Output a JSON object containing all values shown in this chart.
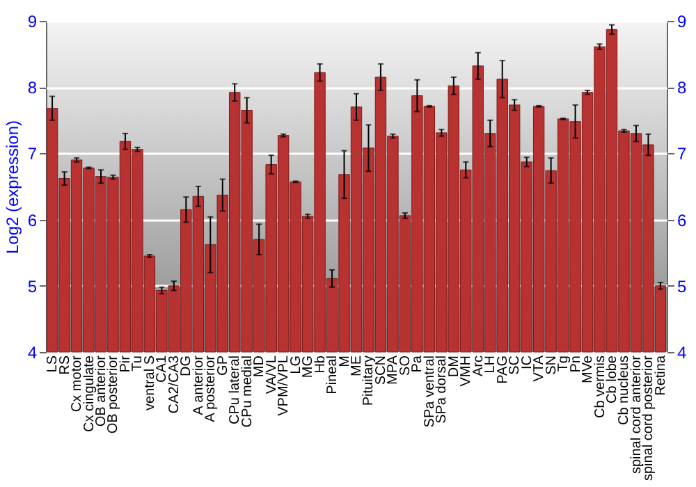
{
  "chart_data": {
    "type": "bar",
    "ylabel": "Log2 (expression)",
    "categories": [
      "LS",
      "RS",
      "Cx motor",
      "Cx cingulate",
      "OB anterior",
      "OB posterior",
      "Pir",
      "Tu",
      "ventral S",
      "CA1",
      "CA2/CA3",
      "DG",
      "A anterior",
      "A posterior",
      "GP",
      "CPu lateral",
      "CPu medial",
      "MD",
      "VA/VL",
      "VPM/VPL",
      "LG",
      "MG",
      "Hb",
      "Pineal",
      "M",
      "ME",
      "Pituitary",
      "SCN",
      "MPA",
      "SO",
      "Pa",
      "SPa ventral",
      "SPa dorsal",
      "DM",
      "VMH",
      "Arc",
      "LH",
      "PAG",
      "SC",
      "IC",
      "VTA",
      "SN",
      "Tg",
      "Pn",
      "MVe",
      "Cb vermis",
      "Cb lobe",
      "Cb nucleus",
      "spinal cord anterior",
      "spinal cord posterior",
      "Retina"
    ],
    "values": [
      7.68,
      6.62,
      6.9,
      6.78,
      6.65,
      6.64,
      7.18,
      7.06,
      5.45,
      4.93,
      5.0,
      6.15,
      6.35,
      5.62,
      6.37,
      7.92,
      7.65,
      5.7,
      6.83,
      7.27,
      6.57,
      6.05,
      8.22,
      5.11,
      6.68,
      7.7,
      7.08,
      8.15,
      7.26,
      6.06,
      7.87,
      7.71,
      7.31,
      8.02,
      6.75,
      8.32,
      7.3,
      8.12,
      7.73,
      6.87,
      7.71,
      6.74,
      7.52,
      7.48,
      7.92,
      8.61,
      8.87,
      7.34,
      7.3,
      7.13,
      5.0
    ],
    "errors": [
      0.18,
      0.1,
      0.03,
      0.01,
      0.1,
      0.03,
      0.12,
      0.03,
      0.02,
      0.05,
      0.07,
      0.19,
      0.15,
      0.42,
      0.24,
      0.13,
      0.19,
      0.23,
      0.14,
      0.02,
      0.01,
      0.03,
      0.13,
      0.13,
      0.36,
      0.2,
      0.35,
      0.2,
      0.03,
      0.04,
      0.24,
      0.01,
      0.05,
      0.13,
      0.12,
      0.2,
      0.2,
      0.28,
      0.08,
      0.07,
      0.01,
      0.19,
      0.01,
      0.25,
      0.03,
      0.04,
      0.07,
      0.02,
      0.12,
      0.16,
      0.05
    ],
    "color": "#b83232",
    "ylim": [
      4,
      9
    ],
    "yticks": [
      4,
      5,
      6,
      7,
      8,
      9
    ],
    "y2lim": [
      4,
      9
    ],
    "y2ticks": [
      4,
      5,
      6,
      7,
      8,
      9
    ],
    "grid": "y"
  }
}
